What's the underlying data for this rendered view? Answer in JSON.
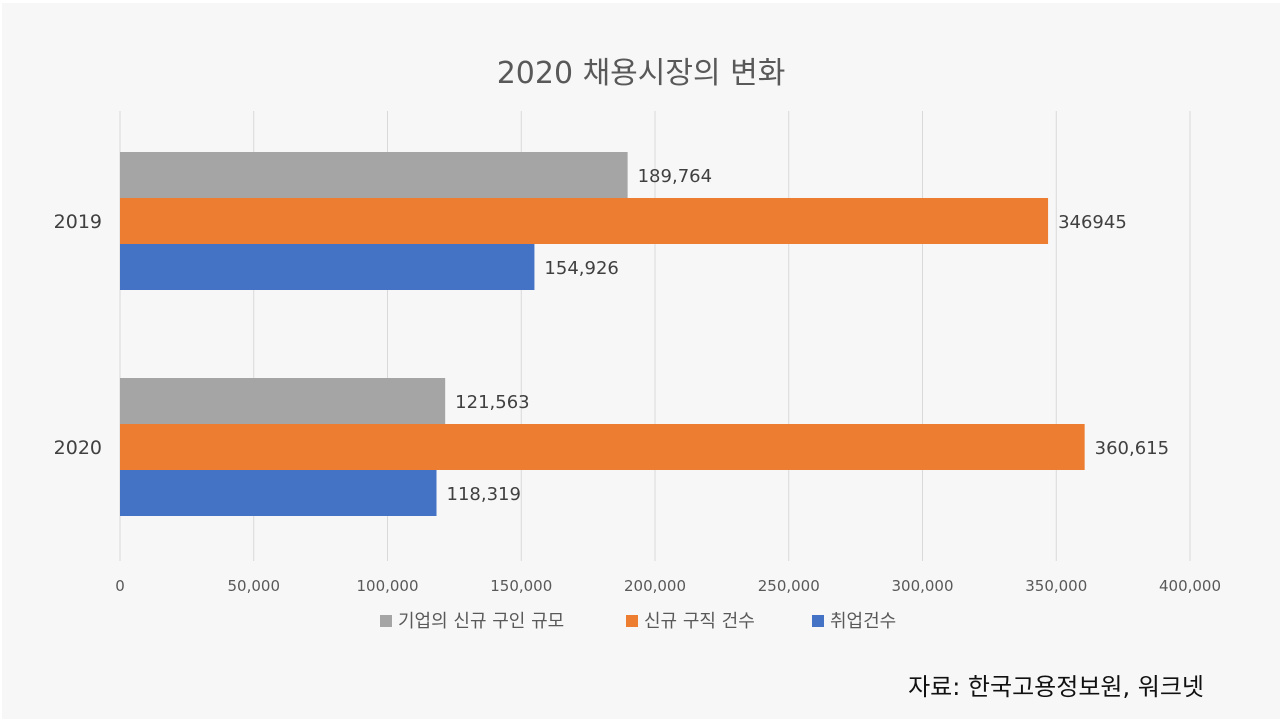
{
  "chart_data": {
    "type": "bar",
    "orientation": "horizontal",
    "title": "2020 채용시장의 변화",
    "categories": [
      "2019",
      "2020"
    ],
    "series": [
      {
        "name": "기업의 신규 구인 규모",
        "color": "#a5a5a5",
        "values": [
          189764,
          121563
        ],
        "labels": [
          "189,764",
          "121,563"
        ]
      },
      {
        "name": "신규 구직 건수",
        "color": "#ed7d31",
        "values": [
          346945,
          360615
        ],
        "labels": [
          "346945",
          "360,615"
        ]
      },
      {
        "name": "취업건수",
        "color": "#4472c4",
        "values": [
          154926,
          118319
        ],
        "labels": [
          "154,926",
          "118,319"
        ]
      }
    ],
    "xlim": [
      0,
      400000
    ],
    "xticks": [
      0,
      50000,
      100000,
      150000,
      200000,
      250000,
      300000,
      350000,
      400000
    ],
    "xtick_labels": [
      "0",
      "50,000",
      "100,000",
      "150,000",
      "200,000",
      "250,000",
      "300,000",
      "350,000",
      "400,000"
    ],
    "grid": true,
    "legend": "bottom"
  },
  "source_text": "자료: 한국고용정보원, 워크넷"
}
